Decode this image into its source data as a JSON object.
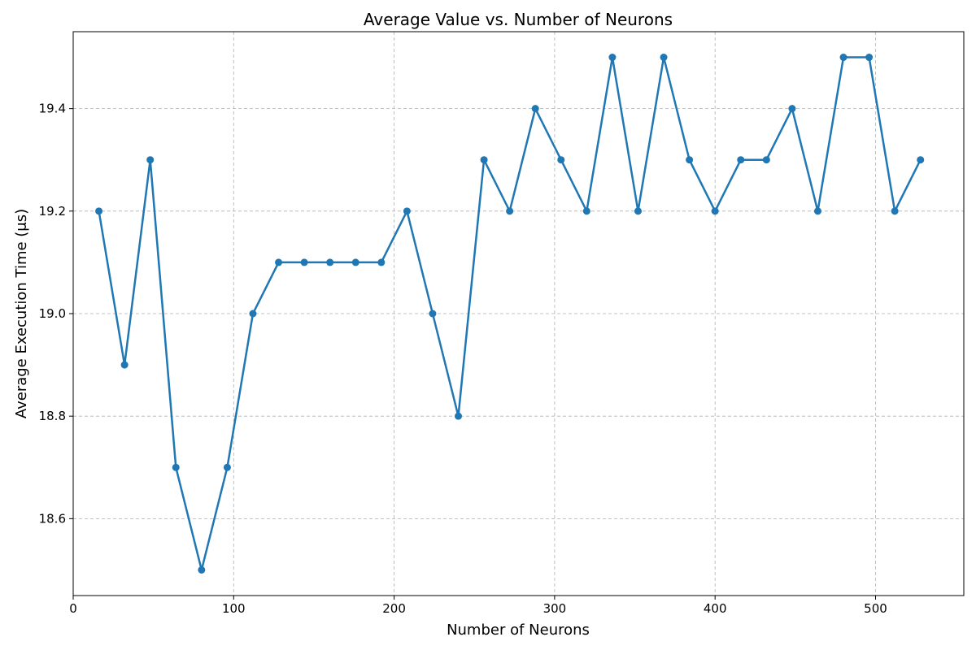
{
  "chart_data": {
    "type": "line",
    "title": "Average Value vs. Number of Neurons",
    "xlabel": "Number of Neurons",
    "ylabel": "Average Execution Time (μs)",
    "xlim": [
      0,
      555
    ],
    "ylim": [
      18.45,
      19.55
    ],
    "xticks": [
      0,
      100,
      200,
      300,
      400,
      500
    ],
    "yticks": [
      18.6,
      18.8,
      19.0,
      19.2,
      19.4
    ],
    "xtick_labels": [
      "0",
      "100",
      "200",
      "300",
      "400",
      "500"
    ],
    "ytick_labels": [
      "18.6",
      "18.8",
      "19.0",
      "19.2",
      "19.4"
    ],
    "grid": true,
    "color": "#1f77b4",
    "x": [
      16,
      32,
      48,
      64,
      80,
      96,
      112,
      128,
      144,
      160,
      176,
      192,
      208,
      224,
      240,
      256,
      272,
      288,
      304,
      320,
      336,
      352,
      368,
      384,
      400,
      416,
      432,
      448,
      464,
      480,
      496,
      512,
      528
    ],
    "y": [
      19.2,
      18.9,
      19.3,
      18.7,
      18.5,
      18.7,
      19.0,
      19.1,
      19.1,
      19.1,
      19.1,
      19.1,
      19.2,
      19.0,
      18.8,
      19.3,
      19.2,
      19.4,
      19.3,
      19.2,
      19.5,
      19.2,
      19.5,
      19.3,
      19.2,
      19.3,
      19.3,
      19.4,
      19.2,
      19.5,
      19.5,
      19.2,
      19.3
    ]
  }
}
